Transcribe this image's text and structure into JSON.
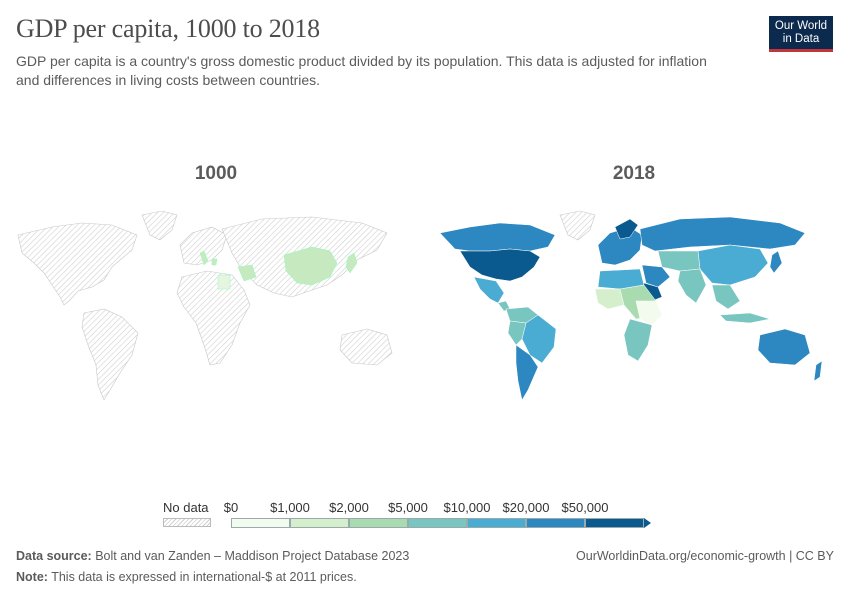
{
  "header": {
    "title": "GDP per capita, 1000 to 2018",
    "subtitle": "GDP per capita is a country's gross domestic product divided by its population. This data is adjusted for inflation and differences in living costs between countries."
  },
  "logo": {
    "line1": "Our World",
    "line2": "in Data",
    "background": "#0c2a4d",
    "accent": "#c0363b"
  },
  "maps": [
    {
      "year": "1000",
      "with_data": [
        "China",
        "Japan",
        "Iraq",
        "Iran",
        "Egypt",
        "Greece",
        "Italy"
      ],
      "bin_color": "#c7e9c0"
    },
    {
      "year": "2018",
      "style": "choropleth"
    }
  ],
  "legend": {
    "no_data_label": "No data",
    "ticks": [
      "$0",
      "$1,000",
      "$2,000",
      "$5,000",
      "$10,000",
      "$20,000",
      "$50,000"
    ],
    "colors": [
      "#f3fbef",
      "#d5efcc",
      "#a8dcb0",
      "#79c6c0",
      "#4bacd3",
      "#2d87c0",
      "#0a5a8f"
    ]
  },
  "footer": {
    "source_label": "Data source:",
    "source_text": "Bolt and van Zanden – Maddison Project Database 2023",
    "note_label": "Note:",
    "note_text": "This data is expressed in international-$ at 2011 prices.",
    "link": "OurWorldinData.org/economic-growth | CC BY"
  }
}
